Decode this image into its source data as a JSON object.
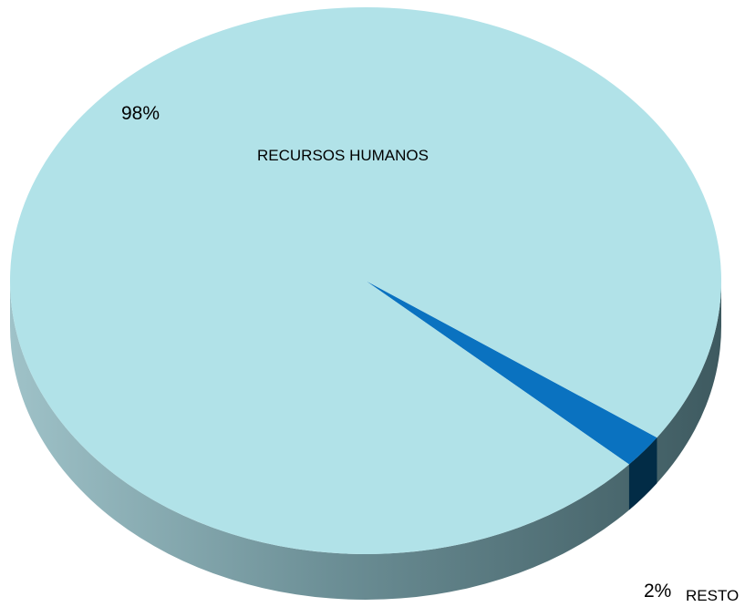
{
  "chart_data": {
    "type": "pie",
    "three_d": true,
    "slices": [
      {
        "label": "RECURSOS HUMANOS",
        "value": 98,
        "value_label": "98%",
        "color": "#b1e2e8",
        "side_color": "#5f8088"
      },
      {
        "label": "RESTO",
        "value": 2,
        "value_label": "2%",
        "color": "#0a72c0",
        "side_color": "#022c46"
      }
    ],
    "legend": "none"
  }
}
